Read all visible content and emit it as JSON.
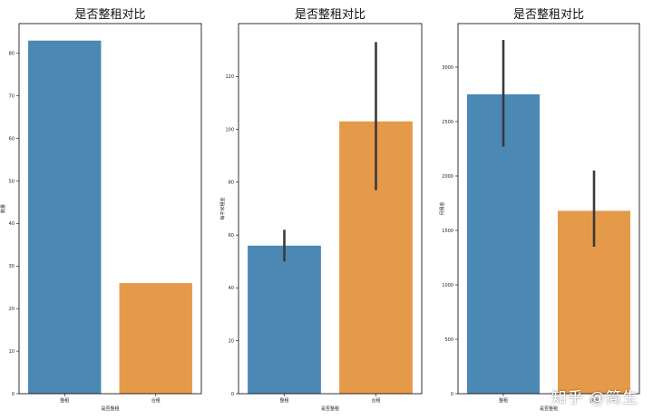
{
  "colors": {
    "bar_blue": "#4c88b4",
    "bar_orange": "#e59a4a",
    "errbar": "#3a3a3a"
  },
  "chart_data": [
    {
      "type": "bar",
      "title": "是否整租对比",
      "xlabel": "是否整租",
      "ylabel": "数量",
      "categories": [
        "整租",
        "合租"
      ],
      "values": [
        83,
        26
      ],
      "ylim": [
        0,
        87
      ],
      "yticks": [
        0,
        10,
        20,
        30,
        40,
        50,
        60,
        70,
        80
      ]
    },
    {
      "type": "bar",
      "title": "是否整租对比",
      "xlabel": "是否整租",
      "ylabel": "每平米租金",
      "categories": [
        "整租",
        "合租"
      ],
      "values": [
        56,
        103
      ],
      "errors": [
        [
          50,
          62
        ],
        [
          77,
          133
        ]
      ],
      "ylim": [
        0,
        140
      ],
      "yticks": [
        0,
        20,
        40,
        60,
        80,
        100,
        120
      ]
    },
    {
      "type": "bar",
      "title": "是否整租对比",
      "xlabel": "是否整租",
      "ylabel": "月租金",
      "categories": [
        "整租",
        "合租"
      ],
      "values": [
        2750,
        1680
      ],
      "errors": [
        [
          2270,
          3250
        ],
        [
          1350,
          2050
        ]
      ],
      "ylim": [
        0,
        3400
      ],
      "yticks": [
        0,
        500,
        1000,
        1500,
        2000,
        2500,
        3000
      ]
    }
  ],
  "watermark": "知乎 @简生"
}
